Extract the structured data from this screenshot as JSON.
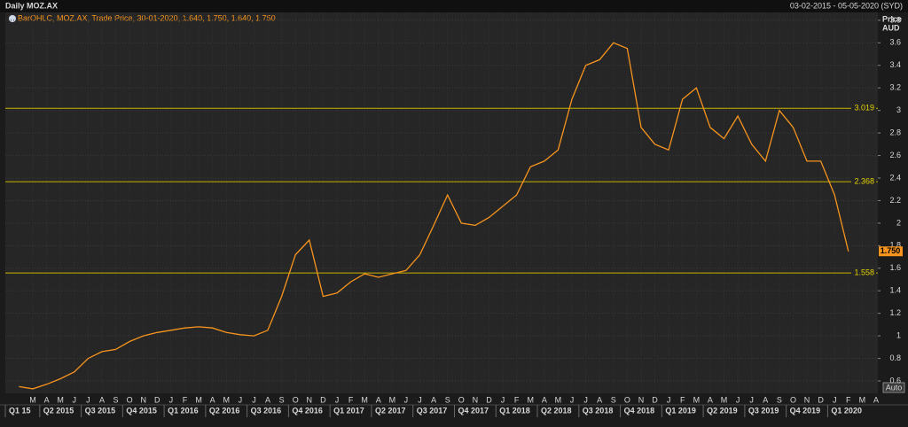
{
  "chart_data": {
    "type": "line",
    "title": "Daily MOZ.AX",
    "date_range": "03-02-2015 - 05-05-2020 (SYD)",
    "legend": "BarOHLC, MOZ.AX, Trade Price, 30-01-2020, 1.640, 1.750, 1.640, 1.750",
    "y_label": "Price",
    "y_unit": "AUD",
    "scale_button": "Auto",
    "color": "#f7941d",
    "x": [
      "2015-02",
      "2015-03",
      "2015-04",
      "2015-05",
      "2015-06",
      "2015-07",
      "2015-08",
      "2015-09",
      "2015-10",
      "2015-11",
      "2015-12",
      "2016-01",
      "2016-02",
      "2016-03",
      "2016-04",
      "2016-05",
      "2016-06",
      "2016-07",
      "2016-08",
      "2016-09",
      "2016-10",
      "2016-11",
      "2016-12",
      "2017-01",
      "2017-02",
      "2017-03",
      "2017-04",
      "2017-05",
      "2017-06",
      "2017-07",
      "2017-08",
      "2017-09",
      "2017-10",
      "2017-11",
      "2017-12",
      "2018-01",
      "2018-02",
      "2018-03",
      "2018-04",
      "2018-05",
      "2018-06",
      "2018-07",
      "2018-08",
      "2018-09",
      "2018-10",
      "2018-11",
      "2018-12",
      "2019-01",
      "2019-02",
      "2019-03",
      "2019-04",
      "2019-05",
      "2019-06",
      "2019-07",
      "2019-08",
      "2019-09",
      "2019-10",
      "2019-11",
      "2019-12",
      "2020-01",
      "2020-02"
    ],
    "values": [
      0.55,
      0.53,
      0.57,
      0.62,
      0.68,
      0.8,
      0.86,
      0.88,
      0.95,
      1.0,
      1.03,
      1.05,
      1.07,
      1.08,
      1.07,
      1.03,
      1.01,
      1.0,
      1.05,
      1.35,
      1.72,
      1.85,
      1.35,
      1.38,
      1.48,
      1.55,
      1.52,
      1.55,
      1.58,
      1.72,
      1.98,
      2.25,
      2.0,
      1.98,
      2.05,
      2.15,
      2.25,
      2.5,
      2.55,
      2.65,
      3.1,
      3.4,
      3.45,
      3.6,
      3.55,
      2.85,
      2.7,
      2.65,
      3.1,
      3.2,
      2.85,
      2.75,
      2.95,
      2.7,
      2.55,
      3.0,
      2.85,
      2.55,
      2.55,
      2.25,
      1.75
    ],
    "ylim": [
      0.49,
      3.87
    ],
    "yticks": [
      0.6,
      0.8,
      1,
      1.2,
      1.4,
      1.6,
      1.8,
      2,
      2.2,
      2.4,
      2.6,
      2.8,
      3,
      3.2,
      3.4,
      3.6,
      3.8
    ],
    "levels": [
      3.019,
      2.368,
      1.558
    ],
    "last_price": {
      "value": 1.75,
      "label": "1.750"
    },
    "xticks": [
      {
        "value": "2015-03",
        "label": "M"
      },
      {
        "value": "2015-04",
        "label": "A"
      },
      {
        "value": "2015-05",
        "label": "M"
      },
      {
        "value": "2015-06",
        "label": "J"
      },
      {
        "value": "2015-07",
        "label": "J"
      },
      {
        "value": "2015-08",
        "label": "A"
      },
      {
        "value": "2015-09",
        "label": "S"
      },
      {
        "value": "2015-10",
        "label": "O"
      },
      {
        "value": "2015-11",
        "label": "N"
      },
      {
        "value": "2015-12",
        "label": "D"
      },
      {
        "value": "2016-01",
        "label": "J"
      },
      {
        "value": "2016-02",
        "label": "F"
      },
      {
        "value": "2016-03",
        "label": "M"
      },
      {
        "value": "2016-04",
        "label": "A"
      },
      {
        "value": "2016-05",
        "label": "M"
      },
      {
        "value": "2016-06",
        "label": "J"
      },
      {
        "value": "2016-07",
        "label": "J"
      },
      {
        "value": "2016-08",
        "label": "A"
      },
      {
        "value": "2016-09",
        "label": "S"
      },
      {
        "value": "2016-10",
        "label": "O"
      },
      {
        "value": "2016-11",
        "label": "N"
      },
      {
        "value": "2016-12",
        "label": "D"
      },
      {
        "value": "2017-01",
        "label": "J"
      },
      {
        "value": "2017-02",
        "label": "F"
      },
      {
        "value": "2017-03",
        "label": "M"
      },
      {
        "value": "2017-04",
        "label": "A"
      },
      {
        "value": "2017-05",
        "label": "M"
      },
      {
        "value": "2017-06",
        "label": "J"
      },
      {
        "value": "2017-07",
        "label": "J"
      },
      {
        "value": "2017-08",
        "label": "A"
      },
      {
        "value": "2017-09",
        "label": "S"
      },
      {
        "value": "2017-10",
        "label": "O"
      },
      {
        "value": "2017-11",
        "label": "N"
      },
      {
        "value": "2017-12",
        "label": "D"
      },
      {
        "value": "2018-01",
        "label": "J"
      },
      {
        "value": "2018-02",
        "label": "F"
      },
      {
        "value": "2018-03",
        "label": "M"
      },
      {
        "value": "2018-04",
        "label": "A"
      },
      {
        "value": "2018-05",
        "label": "M"
      },
      {
        "value": "2018-06",
        "label": "J"
      },
      {
        "value": "2018-07",
        "label": "J"
      },
      {
        "value": "2018-08",
        "label": "A"
      },
      {
        "value": "2018-09",
        "label": "S"
      },
      {
        "value": "2018-10",
        "label": "O"
      },
      {
        "value": "2018-11",
        "label": "N"
      },
      {
        "value": "2018-12",
        "label": "D"
      },
      {
        "value": "2019-01",
        "label": "J"
      },
      {
        "value": "2019-02",
        "label": "F"
      },
      {
        "value": "2019-03",
        "label": "M"
      },
      {
        "value": "2019-04",
        "label": "A"
      },
      {
        "value": "2019-05",
        "label": "M"
      },
      {
        "value": "2019-06",
        "label": "J"
      },
      {
        "value": "2019-07",
        "label": "J"
      },
      {
        "value": "2019-08",
        "label": "A"
      },
      {
        "value": "2019-09",
        "label": "S"
      },
      {
        "value": "2019-10",
        "label": "O"
      },
      {
        "value": "2019-11",
        "label": "N"
      },
      {
        "value": "2019-12",
        "label": "D"
      },
      {
        "value": "2020-01",
        "label": "J"
      },
      {
        "value": "2020-02",
        "label": "F"
      },
      {
        "value": "2020-03",
        "label": "M"
      },
      {
        "value": "2020-04",
        "label": "A"
      }
    ],
    "quarters": [
      {
        "value": "2015-01",
        "label": "Q1 15"
      },
      {
        "value": "2015-04",
        "label": "Q2 2015"
      },
      {
        "value": "2015-07",
        "label": "Q3 2015"
      },
      {
        "value": "2015-10",
        "label": "Q4 2015"
      },
      {
        "value": "2016-01",
        "label": "Q1 2016"
      },
      {
        "value": "2016-04",
        "label": "Q2 2016"
      },
      {
        "value": "2016-07",
        "label": "Q3 2016"
      },
      {
        "value": "2016-10",
        "label": "Q4 2016"
      },
      {
        "value": "2017-01",
        "label": "Q1 2017"
      },
      {
        "value": "2017-04",
        "label": "Q2 2017"
      },
      {
        "value": "2017-07",
        "label": "Q3 2017"
      },
      {
        "value": "2017-10",
        "label": "Q4 2017"
      },
      {
        "value": "2018-01",
        "label": "Q1 2018"
      },
      {
        "value": "2018-04",
        "label": "Q2 2018"
      },
      {
        "value": "2018-07",
        "label": "Q3 2018"
      },
      {
        "value": "2018-10",
        "label": "Q4 2018"
      },
      {
        "value": "2019-01",
        "label": "Q1 2019"
      },
      {
        "value": "2019-04",
        "label": "Q2 2019"
      },
      {
        "value": "2019-07",
        "label": "Q3 2019"
      },
      {
        "value": "2019-10",
        "label": "Q4 2019"
      },
      {
        "value": "2020-01",
        "label": "Q1 2020"
      }
    ]
  }
}
